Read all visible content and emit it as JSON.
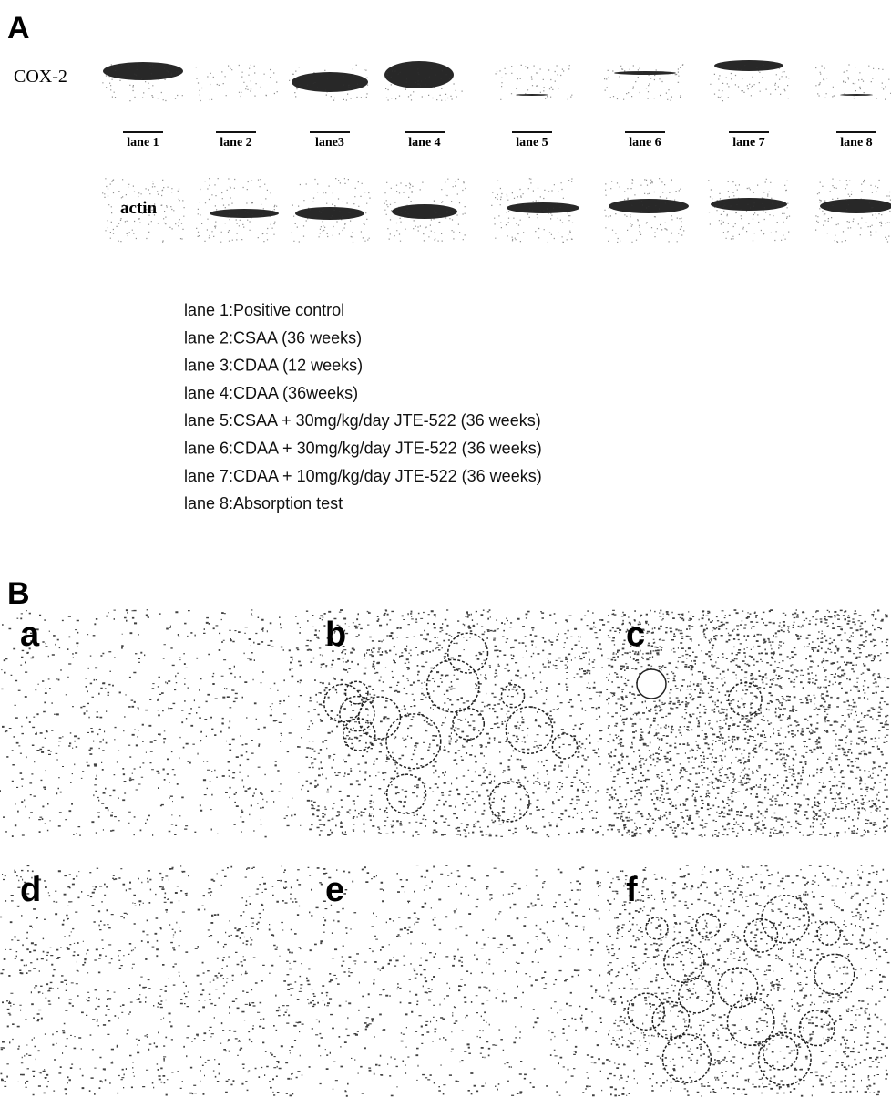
{
  "panel_a": {
    "label": "A",
    "cox2_label": "COX-2",
    "actin_label": "actin",
    "lanes": [
      "lane 1",
      "lane 2",
      "lane3",
      "lane 4",
      "lane 5",
      "lane 6",
      "lane 7",
      "lane 8"
    ],
    "legend": [
      "lane 1:Positive control",
      "lane 2:CSAA (36 weeks)",
      "lane 3:CDAA (12 weeks)",
      "lane 4:CDAA (36weeks)",
      "lane 5:CSAA + 30mg/kg/day JTE-522 (36 weeks)",
      "lane 6:CDAA + 30mg/kg/day JTE-522 (36 weeks)",
      "lane 7:CDAA + 10mg/kg/day JTE-522 (36 weeks)",
      "lane 8:Absorption test"
    ]
  },
  "panel_b": {
    "label": "B",
    "images": [
      "a",
      "b",
      "c",
      "d",
      "e",
      "f"
    ]
  }
}
